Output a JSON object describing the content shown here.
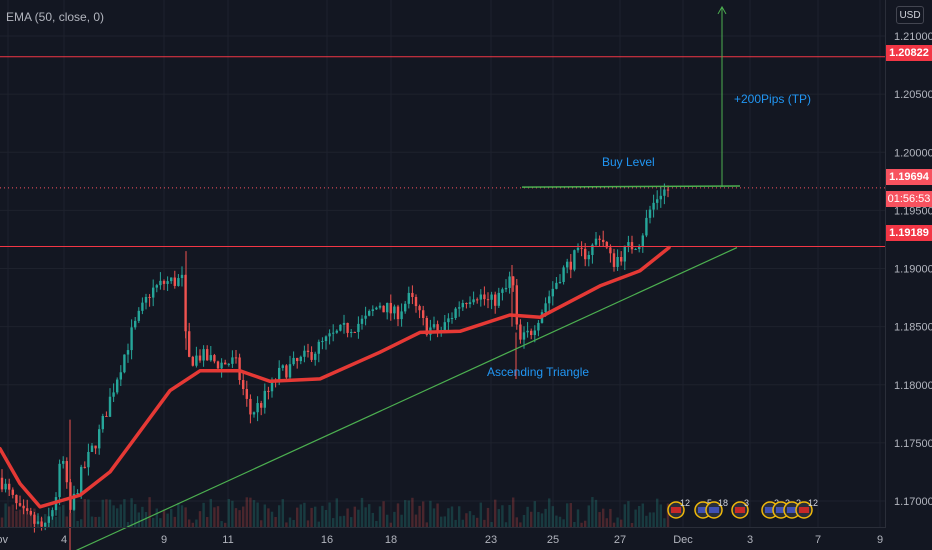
{
  "indicator": {
    "label": "EMA (50, close, 0)"
  },
  "currency": "USD",
  "price_tags": {
    "resistance": "1.20822",
    "current_price": "1.19694",
    "countdown": "01:56:53",
    "support": "1.19189"
  },
  "annotations": {
    "target": "+200Pips (TP)",
    "buy_level": "Buy Level",
    "pattern": "Ascending Triangle"
  },
  "colors": {
    "background": "#131722",
    "bull": "#26a69a",
    "bear": "#ef5350",
    "ema": "#e53935",
    "horizontal_lines": "#f23645",
    "trendline": "#4caf50",
    "annotation_text": "#2196f3"
  },
  "chart_data": {
    "type": "candlestick",
    "y_ticks": [
      "1.21000",
      "1.20500",
      "1.20000",
      "1.19500",
      "1.19000",
      "1.18500",
      "1.18000",
      "1.17500",
      "1.17000"
    ],
    "x_ticks": [
      "ov",
      "4",
      "9",
      "11",
      "16",
      "18",
      "23",
      "25",
      "27",
      "Dec",
      "3",
      "7",
      "9"
    ],
    "ylim": [
      1.1655,
      1.2135
    ],
    "horizontal_lines": [
      1.20822,
      1.19189
    ],
    "current_price": 1.19694,
    "ema_50": [
      {
        "x": 0,
        "y": 1.1745
      },
      {
        "x": 20,
        "y": 1.1715
      },
      {
        "x": 40,
        "y": 1.1695
      },
      {
        "x": 60,
        "y": 1.17
      },
      {
        "x": 80,
        "y": 1.1705
      },
      {
        "x": 110,
        "y": 1.1725
      },
      {
        "x": 140,
        "y": 1.176
      },
      {
        "x": 170,
        "y": 1.1795
      },
      {
        "x": 200,
        "y": 1.1812
      },
      {
        "x": 240,
        "y": 1.1812
      },
      {
        "x": 270,
        "y": 1.1803
      },
      {
        "x": 320,
        "y": 1.1805
      },
      {
        "x": 380,
        "y": 1.1828
      },
      {
        "x": 420,
        "y": 1.1845
      },
      {
        "x": 460,
        "y": 1.1846
      },
      {
        "x": 510,
        "y": 1.186
      },
      {
        "x": 540,
        "y": 1.1858
      },
      {
        "x": 600,
        "y": 1.1885
      },
      {
        "x": 640,
        "y": 1.1898
      },
      {
        "x": 669,
        "y": 1.1918
      }
    ],
    "trendline_support": [
      {
        "x": 70,
        "y": 1.1655
      },
      {
        "x": 737,
        "y": 1.1918
      }
    ],
    "buy_level_line": [
      {
        "x": 522,
        "y": 1.197
      },
      {
        "x": 740,
        "y": 1.1971
      }
    ],
    "target_arrow": [
      {
        "x": 722,
        "y": 1.197
      },
      {
        "x": 722,
        "y": 1.2125
      }
    ],
    "event_markers": [
      {
        "label": "12"
      },
      {
        "label": "5"
      },
      {
        "label": "18"
      },
      {
        "label": "3"
      },
      {
        "label": "2"
      },
      {
        "label": "3"
      },
      {
        "label": "2"
      },
      {
        "label": "12"
      }
    ]
  }
}
